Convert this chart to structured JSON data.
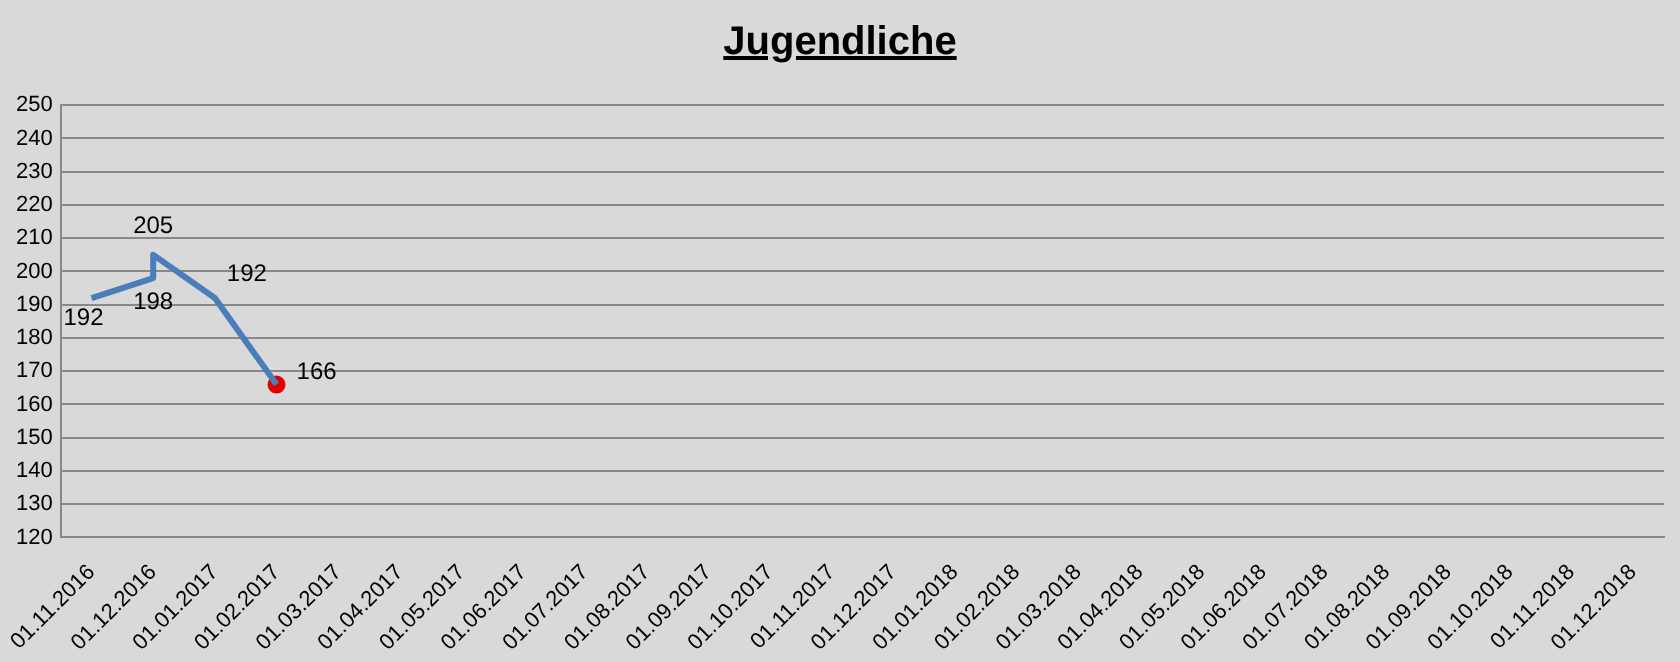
{
  "chart_data": {
    "type": "line",
    "title": "Jugendliche",
    "categories": [
      "01.11.2016",
      "01.12.2016",
      "01.01.2017",
      "01.02.2017",
      "01.03.2017",
      "01.04.2017",
      "01.05.2017",
      "01.06.2017",
      "01.07.2017",
      "01.08.2017",
      "01.09.2017",
      "01.10.2017",
      "01.11.2017",
      "01.12.2017",
      "01.01.2018",
      "01.02.2018",
      "01.03.2018",
      "01.04.2018",
      "01.05.2018",
      "01.06.2018",
      "01.07.2018",
      "01.08.2018",
      "01.09.2018",
      "01.10.2018",
      "01.11.2018",
      "01.12.2018"
    ],
    "series": [
      {
        "color": "#4a7ebb",
        "marker": "none",
        "x": [
          "01.11.2016",
          "01.12.2016",
          "01.12.2016",
          "01.01.2017",
          "01.02.2017"
        ],
        "values": [
          192,
          198,
          205,
          192,
          166
        ],
        "value_labels": [
          "192",
          "198",
          "205",
          "192",
          null
        ]
      },
      {
        "type": "scatter",
        "color": "#e00000",
        "marker": "circle",
        "x": [
          "01.02.2017"
        ],
        "values": [
          166
        ],
        "value_labels": [
          "166"
        ]
      }
    ],
    "ylim": [
      120,
      250
    ],
    "yticks": [
      120,
      130,
      140,
      150,
      160,
      170,
      180,
      190,
      200,
      210,
      220,
      230,
      240,
      250
    ],
    "grid": "y",
    "legend": false
  }
}
